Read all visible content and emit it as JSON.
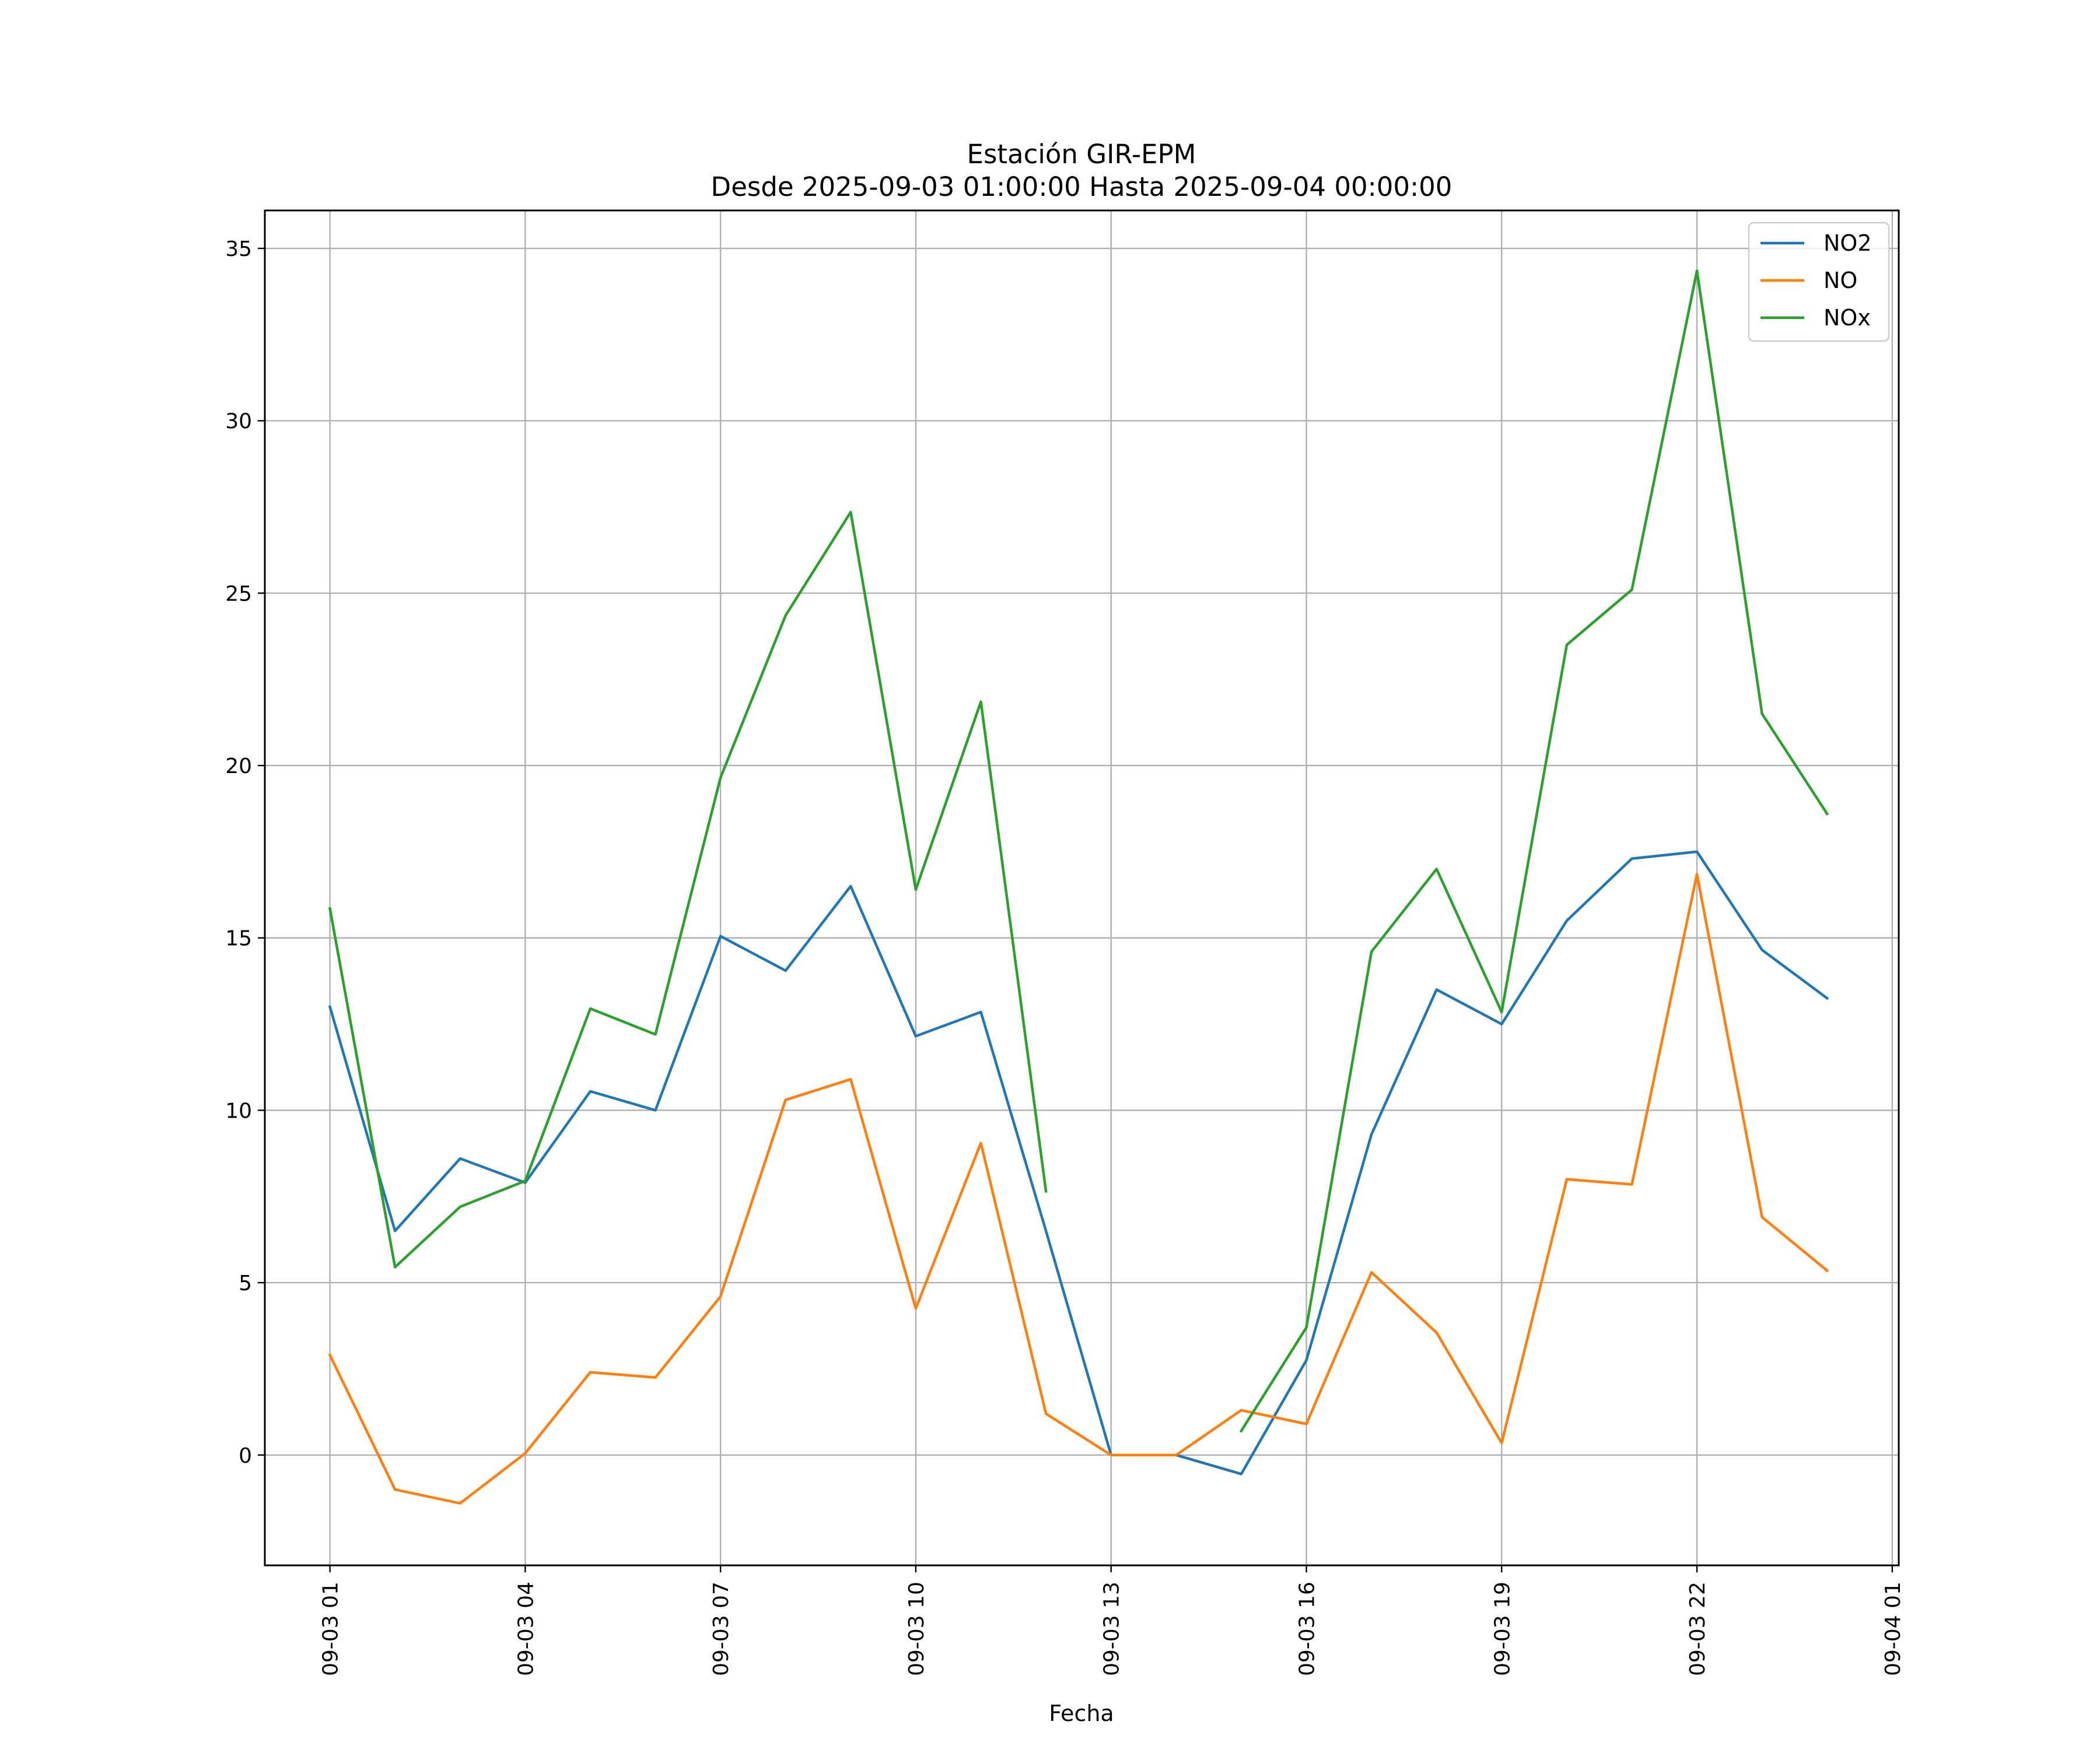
{
  "chart_data": {
    "type": "line",
    "title": "Estación GIR-EPM",
    "subtitle": "Desde 2025-09-03 01:00:00 Hasta 2025-09-04 00:00:00",
    "xlabel": "Fecha",
    "ylabel": "",
    "x": [
      "2025-09-03 01:00",
      "2025-09-03 02:00",
      "2025-09-03 03:00",
      "2025-09-03 04:00",
      "2025-09-03 05:00",
      "2025-09-03 06:00",
      "2025-09-03 07:00",
      "2025-09-03 08:00",
      "2025-09-03 09:00",
      "2025-09-03 10:00",
      "2025-09-03 11:00",
      "2025-09-03 12:00",
      "2025-09-03 13:00",
      "2025-09-03 14:00",
      "2025-09-03 15:00",
      "2025-09-03 16:00",
      "2025-09-03 17:00",
      "2025-09-03 18:00",
      "2025-09-03 19:00",
      "2025-09-03 20:00",
      "2025-09-03 21:00",
      "2025-09-03 22:00",
      "2025-09-03 23:00",
      "2025-09-04 00:00"
    ],
    "xlim": [
      "2025-09-03 00:00",
      "2025-09-04 01:06"
    ],
    "ylim": [
      -3.2,
      36.1
    ],
    "x_ticks": [
      "09-03 01",
      "09-03 04",
      "09-03 07",
      "09-03 10",
      "09-03 13",
      "09-03 16",
      "09-03 19",
      "09-03 22",
      "09-04 01"
    ],
    "x_tick_values": [
      "2025-09-03 01:00",
      "2025-09-03 04:00",
      "2025-09-03 07:00",
      "2025-09-03 10:00",
      "2025-09-03 13:00",
      "2025-09-03 16:00",
      "2025-09-03 19:00",
      "2025-09-03 22:00",
      "2025-09-04 01:00"
    ],
    "y_ticks": [
      0,
      5,
      10,
      15,
      20,
      25,
      30,
      35
    ],
    "y_tick_labels": [
      "0",
      "5",
      "10",
      "15",
      "20",
      "25",
      "30",
      "35"
    ],
    "grid": true,
    "legend_position": "top-right",
    "series": [
      {
        "name": "NO2",
        "color": "#1f77b4",
        "values": [
          13.0,
          6.5,
          8.6,
          7.9,
          10.55,
          10.0,
          15.05,
          14.05,
          16.5,
          12.15,
          12.85,
          6.5,
          0.0,
          0.0,
          -0.55,
          2.75,
          9.3,
          13.5,
          12.5,
          15.5,
          17.3,
          17.5,
          14.65,
          13.25
        ]
      },
      {
        "name": "NO",
        "color": "#ff7f0e",
        "values": [
          2.9,
          -1.0,
          -1.4,
          0.05,
          2.4,
          2.25,
          4.6,
          10.3,
          10.9,
          4.25,
          9.05,
          1.2,
          0.0,
          0.0,
          1.3,
          0.9,
          5.3,
          3.55,
          0.35,
          8.0,
          7.85,
          16.85,
          6.9,
          5.35
        ]
      },
      {
        "name": "NOx",
        "color": "#2ca02c",
        "values": [
          15.85,
          5.45,
          7.2,
          7.95,
          12.95,
          12.2,
          19.65,
          24.35,
          27.35,
          16.4,
          21.85,
          7.65,
          null,
          null,
          0.7,
          3.7,
          14.6,
          17.0,
          12.85,
          23.5,
          25.1,
          34.35,
          21.5,
          18.6
        ]
      }
    ]
  }
}
